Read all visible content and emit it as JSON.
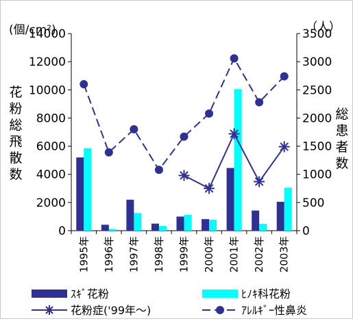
{
  "chart_data": {
    "type": "bar+line",
    "left_axis": {
      "unit_label": "(個/cm²)",
      "title_chars": [
        "花",
        "粉",
        "総",
        "飛",
        "散",
        "数"
      ],
      "ylim": [
        0,
        14000
      ],
      "ticks": [
        "0",
        "2000",
        "4000",
        "6000",
        "8000",
        "10000",
        "12000",
        "14000"
      ]
    },
    "right_axis": {
      "unit_label": "（人）",
      "title_chars": [
        "総",
        "患",
        "者",
        "数"
      ],
      "ylim": [
        0,
        3500
      ],
      "ticks": [
        "0",
        "500",
        "1000",
        "1500",
        "2000",
        "2500",
        "3000",
        "3500"
      ]
    },
    "categories": [
      "1995年",
      "1996年",
      "1997年",
      "1998年",
      "1999年",
      "2000年",
      "2001年",
      "2002年",
      "2003年"
    ],
    "series": [
      {
        "name": "ｽｷﾞ花粉",
        "type": "bar",
        "axis": "left",
        "color": "#2e3192",
        "values": [
          5200,
          420,
          2200,
          500,
          1000,
          820,
          4450,
          1430,
          2050
        ]
      },
      {
        "name": "ﾋﾉｷ科花粉",
        "type": "bar",
        "axis": "left",
        "color": "#00ffff",
        "values": [
          5850,
          120,
          1250,
          330,
          1130,
          780,
          10050,
          480,
          3050
        ]
      },
      {
        "name": "花粉症('99年～)",
        "type": "line",
        "axis": "right",
        "color": "#2e3192",
        "marker": "asterisk",
        "values": [
          null,
          null,
          null,
          null,
          980,
          750,
          1720,
          870,
          1490
        ]
      },
      {
        "name": "ｱﾚﾙｷﾞｰ性鼻炎",
        "type": "line",
        "axis": "right",
        "color": "#2e3192",
        "marker": "circle",
        "dashed": true,
        "values": [
          2600,
          1390,
          1800,
          1080,
          1670,
          2080,
          3060,
          2280,
          2740
        ]
      }
    ]
  }
}
